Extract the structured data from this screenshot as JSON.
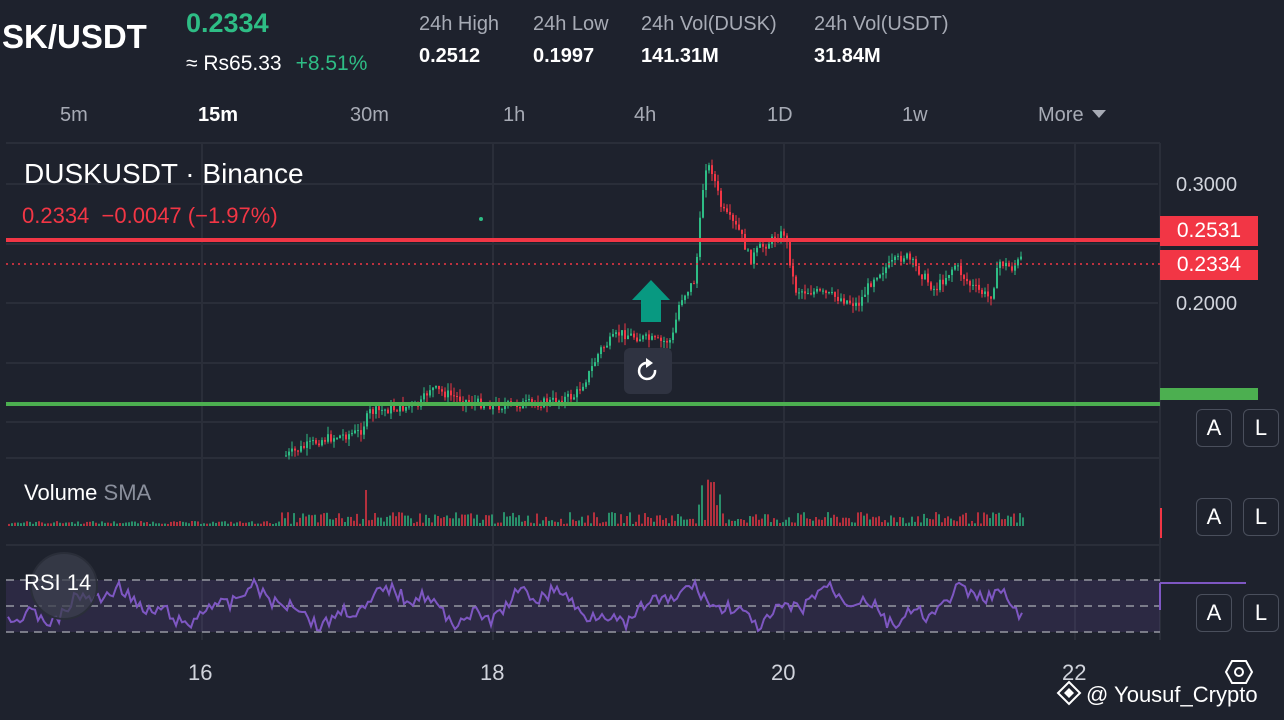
{
  "header": {
    "pair": "SK/USDT",
    "price": "0.2334",
    "approx": "≈ Rs65.33",
    "change": "+8.51%",
    "stats": [
      {
        "label": "24h High",
        "value": "0.2512"
      },
      {
        "label": "24h Low",
        "value": "0.1997"
      },
      {
        "label": "24h Vol(DUSK)",
        "value": "141.31M"
      },
      {
        "label": "24h Vol(USDT)",
        "value": "31.84M"
      }
    ]
  },
  "intervals": [
    "5m",
    "15m",
    "30m",
    "1h",
    "4h",
    "1D",
    "1w"
  ],
  "active_interval": "15m",
  "more_label": "More",
  "chart": {
    "title": "DUSKUSDT · Binance",
    "last": "0.2334",
    "change": "−0.0047 (−1.97%)",
    "price_axis": [
      "0.3000",
      "0.2000"
    ],
    "price_tags": [
      "0.2531",
      "0.2334"
    ],
    "volume_label": "Volume",
    "volume_sma": "SMA",
    "rsi_label": "RSI 14",
    "dates": [
      "16",
      "18",
      "20",
      "22"
    ],
    "btn_a": "A",
    "btn_l": "L"
  },
  "colors": {
    "up": "#2ebd85",
    "down": "#f23645",
    "rsi": "#7e57c2",
    "support": "#4caf50",
    "resistance": "#f23645"
  },
  "icons": [
    "arrow-up-icon",
    "undo-icon",
    "settings-icon",
    "binance-logo-icon",
    "tradingview-logo-icon",
    "chevron-down-icon"
  ],
  "watermark": "@ Yousuf_Crypto"
}
